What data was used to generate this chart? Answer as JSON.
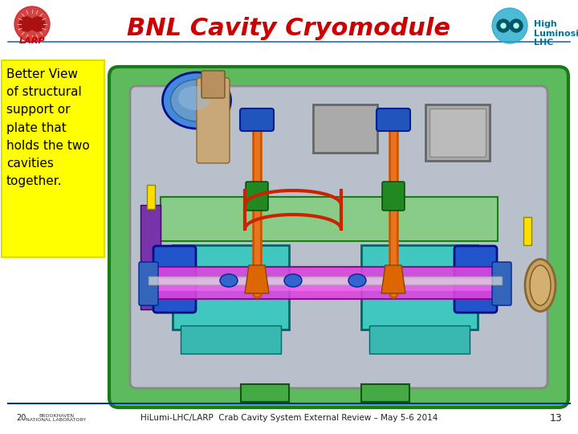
{
  "title": "BNL Cavity Cryomodule",
  "title_color": "#CC0000",
  "title_fontsize": 22,
  "annotation_text": "Better View\nof structural\nsupport or\nplate that\nholds the two\ncavities\ntogether.",
  "annotation_bg": "#FFFF00",
  "annotation_text_color": "#000000",
  "annotation_fontsize": 11,
  "footer_text": "HiLumi-LHC/LARP  Crab Cavity System External Review – May 5-6 2014",
  "footer_page": "13",
  "footer_fontsize": 7.5,
  "bg_color": "#FFFFFF",
  "slide_line_color": "#003399",
  "larp_text": "LARP",
  "larp_color": "#CC0000",
  "bnl_prefix": "20",
  "high_lumi_text": "High\nLuminosity\nLHC",
  "high_lumi_color": "#007799"
}
